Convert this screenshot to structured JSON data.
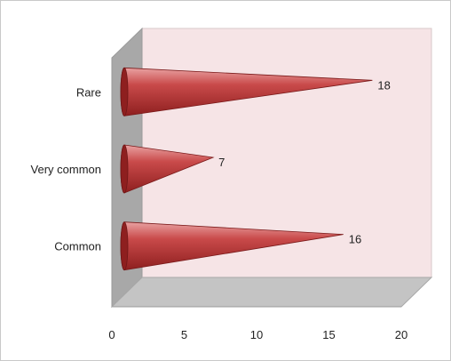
{
  "chart_data": {
    "type": "bar",
    "orientation": "horizontal",
    "style": "3d-cone",
    "categories": [
      "Rare",
      "Very common",
      "Common"
    ],
    "values": [
      18,
      7,
      16
    ],
    "xlim": [
      0,
      20
    ],
    "x_ticks": [
      0,
      5,
      10,
      15,
      20
    ],
    "title": "",
    "xlabel": "",
    "ylabel": "",
    "grid": false,
    "legend": "none",
    "colors": {
      "cone_dark": "#8e1f1f",
      "cone_mid": "#c94a4a",
      "cone_light": "#e9a3a3",
      "back_wall": "#f6e4e6",
      "side_wall": "#a8a8a8",
      "floor": "#c4c4c4"
    }
  }
}
